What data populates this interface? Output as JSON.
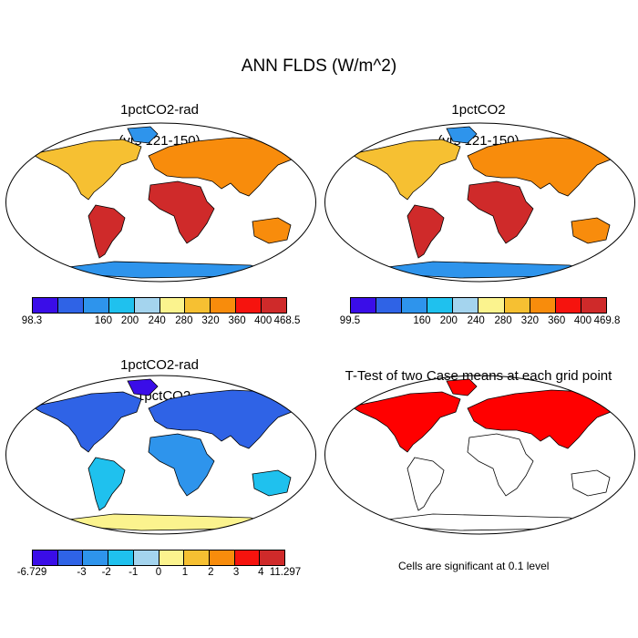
{
  "title": "ANN FLDS (W/m^2)",
  "panels": [
    {
      "title_line1": "1pctCO2-rad",
      "title_line2": "(yrs 121-150)"
    },
    {
      "title_line1": "1pctCO2",
      "title_line2": "(yrs 121-150)"
    },
    {
      "title_line1": "1pctCO2-rad",
      "title_line2": "- 1pctCO2"
    },
    {
      "title_line1": "T-Test of two Case means at each grid point",
      "title_line2": ""
    }
  ],
  "colorbars": [
    {
      "colors": [
        "#3a0de8",
        "#2f63e6",
        "#2e94ec",
        "#1fc1ee",
        "#a4d4ee",
        "#fbf38e",
        "#f6c032",
        "#f88c0c",
        "#f6130e",
        "#cf2a2a"
      ],
      "labels": [
        "98.3",
        "160",
        "200",
        "240",
        "280",
        "320",
        "360",
        "400",
        "468.5"
      ]
    },
    {
      "colors": [
        "#3a0de8",
        "#2f63e6",
        "#2e94ec",
        "#1fc1ee",
        "#a4d4ee",
        "#fbf38e",
        "#f6c032",
        "#f88c0c",
        "#f6130e",
        "#cf2a2a"
      ],
      "labels": [
        "99.5",
        "160",
        "200",
        "240",
        "280",
        "320",
        "360",
        "400",
        "469.8"
      ]
    },
    {
      "colors": [
        "#3a0de8",
        "#2f63e6",
        "#2e94ec",
        "#1fc1ee",
        "#a4d4ee",
        "#fbf38e",
        "#f6c032",
        "#f88c0c",
        "#f6130e",
        "#cf2a2a"
      ],
      "labels": [
        "-6.729",
        "-3",
        "-2",
        "-1",
        "0",
        "1",
        "2",
        "3",
        "4",
        "11.297"
      ]
    }
  ],
  "significance_note": "Cells are significant at 0.1 level",
  "significance_color": "#ff0000"
}
